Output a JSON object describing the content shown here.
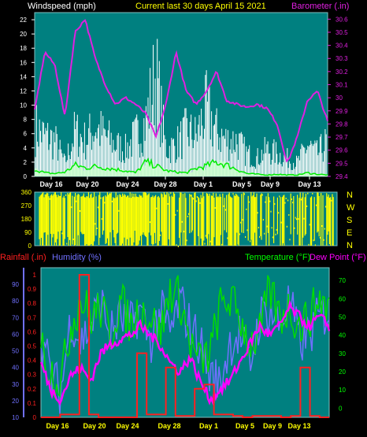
{
  "colors": {
    "bg": "#000000",
    "plot_bg": "#008080",
    "wind": "#ffffff",
    "gust_fill": "#ccffcc",
    "avg": "#00ee00",
    "baro": "#e020e0",
    "winddir": "#ffff00",
    "humidity": "#7070ff",
    "rain": "#ff2020",
    "temp": "#00dd00",
    "dew": "#ff00ff",
    "axis_text_white": "#ffffff",
    "axis_text_yellow": "#ffff00",
    "axis_text_green": "#00ff00"
  },
  "header": {
    "wind_label": "Windspeed (mph)",
    "title": "Current last 30 days April 15 2021",
    "baro_label": "Barometer (.in)"
  },
  "bottom_header": {
    "rain_label": "Rainfall (.in)",
    "humidity_label": "Humidity (%)",
    "temp_label": "Temperature (°F)",
    "dew_label": "Dew Point (°F)"
  },
  "compass": [
    "N",
    "W",
    "S",
    "E",
    "N"
  ],
  "chart_data": [
    {
      "type": "line",
      "name": "wind-baro",
      "x_ticks": [
        "Day 16",
        "Day 20",
        "Day 24",
        "Day 28",
        "Day 1",
        "Day 5",
        "Day 9",
        "Day 13"
      ],
      "y_left_ticks": [
        "0",
        "2",
        "4",
        "6",
        "8",
        "10",
        "12",
        "14",
        "16",
        "18",
        "20",
        "22"
      ],
      "y_right_ticks": [
        "29.4",
        "29.5",
        "29.6",
        "29.7",
        "29.8",
        "29.9",
        "30",
        "30.1",
        "30.2",
        "30.3",
        "30.4",
        "30.5",
        "30.6"
      ],
      "ylim_left": [
        0,
        23
      ],
      "ylim_right": [
        29.4,
        30.65
      ],
      "n_points": 30,
      "series": [
        {
          "name": "Barometer",
          "axis": "right",
          "values": [
            29.9,
            30.35,
            30.25,
            29.85,
            30.5,
            30.6,
            30.3,
            30.1,
            29.95,
            30.0,
            29.95,
            29.88,
            29.7,
            29.95,
            30.35,
            30.05,
            29.95,
            30.05,
            30.2,
            29.98,
            29.95,
            29.93,
            29.95,
            29.92,
            29.8,
            29.5,
            29.7,
            29.98,
            30.05,
            29.82
          ]
        },
        {
          "name": "Windspeed",
          "axis": "left",
          "values": [
            11,
            9,
            8,
            3,
            10,
            8,
            11,
            9,
            7,
            6,
            9,
            12,
            23,
            6,
            7,
            10,
            9,
            15,
            10,
            8,
            8,
            5,
            4,
            6,
            5,
            4,
            3,
            7,
            5,
            8
          ]
        },
        {
          "name": "Average",
          "axis": "left",
          "values": [
            1.0,
            0.5,
            0.4,
            0.6,
            1.6,
            1.2,
            1.4,
            1.2,
            1.0,
            0.8,
            0.5,
            2.0,
            1.5,
            0.8,
            0.6,
            0.5,
            1.1,
            1.5,
            2.0,
            1.6,
            1.0,
            0.4,
            0.3,
            0.2,
            0.3,
            0.2,
            0.2,
            0.5,
            0.3,
            0.2
          ]
        }
      ]
    },
    {
      "type": "area",
      "name": "wind-direction",
      "y_ticks": [
        "0",
        "90",
        "180",
        "270",
        "360"
      ],
      "ylim": [
        0,
        360
      ],
      "coverage": [
        1,
        1,
        0.85,
        0.7,
        0.8,
        0.85,
        0.6,
        0.75,
        0.7,
        0.9,
        1,
        0.7,
        0.85,
        0.9,
        0.65,
        0.55,
        0.75,
        0.6,
        0.7,
        0.65,
        0.55,
        0.6,
        0.4,
        0.5,
        0.45,
        0.55,
        0.4,
        0.7,
        0.6,
        0.8
      ]
    },
    {
      "type": "line",
      "name": "rain-humidity-temp",
      "x_ticks": [
        "Day 16",
        "Day 20",
        "Day 24",
        "Day 28",
        "Day 1",
        "Day 5",
        "Day 9",
        "Day 13"
      ],
      "y_humidity_ticks": [
        "10",
        "20",
        "30",
        "40",
        "50",
        "60",
        "70",
        "80",
        "90"
      ],
      "y_rain_ticks": [
        "0",
        "0.1",
        "0.2",
        "0.3",
        "0.4",
        "0.5",
        "0.6",
        "0.7",
        "0.8",
        "0.9",
        "1"
      ],
      "y_temp_ticks": [
        "0",
        "10",
        "20",
        "30",
        "40",
        "50",
        "60",
        "70"
      ],
      "ylim_humidity": [
        10,
        100
      ],
      "ylim_rain": [
        0,
        1.05
      ],
      "ylim_temp": [
        -5,
        77
      ],
      "series": [
        {
          "name": "Humidity",
          "axis": "humidity",
          "values": [
            60,
            35,
            25,
            70,
            55,
            65,
            80,
            60,
            70,
            65,
            75,
            55,
            75,
            60,
            80,
            65,
            55,
            35,
            30,
            55,
            60,
            40,
            70,
            75,
            65,
            80,
            55,
            60,
            70,
            75
          ]
        },
        {
          "name": "Temperature",
          "axis": "temp",
          "values": [
            35,
            20,
            15,
            45,
            60,
            50,
            55,
            40,
            60,
            45,
            55,
            50,
            40,
            65,
            60,
            35,
            25,
            30,
            55,
            60,
            50,
            35,
            40,
            65,
            50,
            55,
            45,
            50,
            60,
            55
          ]
        },
        {
          "name": "Dew Point",
          "axis": "temp",
          "values": [
            25,
            10,
            5,
            18,
            22,
            15,
            30,
            35,
            38,
            40,
            45,
            40,
            35,
            25,
            20,
            28,
            15,
            5,
            10,
            15,
            25,
            35,
            45,
            40,
            45,
            55,
            50,
            45,
            50,
            45
          ]
        },
        {
          "name": "Rainfall",
          "axis": "rain",
          "values": [
            0,
            0,
            0.02,
            0.02,
            1.0,
            0.02,
            0,
            0,
            0,
            0,
            0.45,
            0.02,
            0.02,
            0.35,
            0.01,
            0.01,
            0.2,
            0.23,
            0.02,
            0.02,
            0.01,
            0,
            0.01,
            0.01,
            0.01,
            0,
            0.01,
            0.35,
            0.01,
            0
          ]
        }
      ]
    }
  ]
}
